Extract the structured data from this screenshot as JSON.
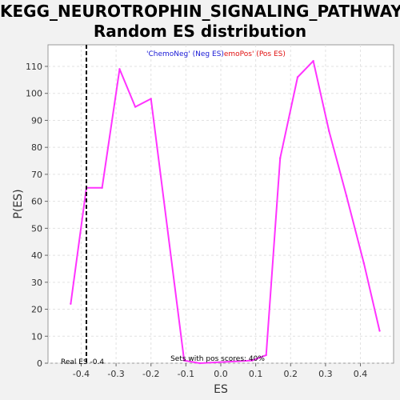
{
  "chart_data": {
    "type": "line",
    "title": "KEGG_NEUROTROPHIN_SIGNALING_PATHWAY:",
    "subtitle": "Random ES distribution",
    "xlabel": "ES",
    "ylabel": "P(ES)",
    "xlim": [
      -0.495,
      0.495
    ],
    "ylim": [
      0,
      118
    ],
    "xticks": [
      -0.4,
      -0.3,
      -0.2,
      -0.1,
      0.0,
      0.1,
      0.2,
      0.3,
      0.4
    ],
    "xtick_labels": [
      "-0.4",
      "-0.3",
      "-0.2",
      "-0.1",
      "0.0",
      "0.1",
      "0.2",
      "0.3",
      "0.4"
    ],
    "yticks": [
      0,
      10,
      20,
      30,
      40,
      50,
      60,
      70,
      80,
      90,
      100,
      110
    ],
    "ytick_labels": [
      "0",
      "10",
      "20",
      "30",
      "40",
      "50",
      "60",
      "70",
      "80",
      "90",
      "100",
      "110"
    ],
    "grid": true,
    "series": [
      {
        "color": "#ff33ff",
        "x": [
          -0.43,
          -0.385,
          -0.34,
          -0.29,
          -0.245,
          -0.2,
          -0.105,
          -0.06,
          0.09,
          0.13,
          0.17,
          0.22,
          0.265,
          0.31,
          0.36,
          0.41,
          0.455
        ],
        "y": [
          22,
          65,
          65,
          109,
          95,
          98,
          1,
          0,
          1,
          3,
          76,
          106,
          112,
          86,
          62,
          37,
          12
        ]
      }
    ],
    "real_es": {
      "x": -0.385,
      "label": "Real ES -0.4",
      "color": "#000000"
    },
    "legend": [
      {
        "text": "'ChemoNeg' (Neg ES)",
        "color": "#1a1ad6"
      },
      {
        "text": "emoPos' (Pos ES)",
        "color": "#e01010"
      }
    ],
    "annotation": "Sets with pos scores: 40%"
  }
}
